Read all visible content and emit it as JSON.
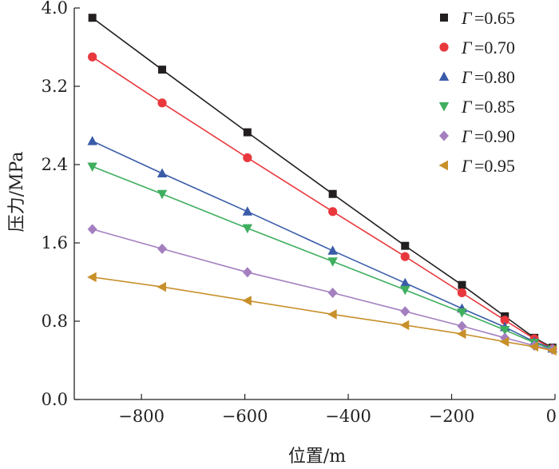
{
  "chart_data": {
    "type": "line",
    "xlabel": "位置/m",
    "ylabel": "压力/MPa",
    "xlim": [
      -930,
      0
    ],
    "ylim": [
      0,
      4.0
    ],
    "x_ticks": [
      -800,
      -600,
      -400,
      -200,
      0
    ],
    "x_tick_labels": [
      "−800",
      "−600",
      "−400",
      "−200",
      "0"
    ],
    "y_ticks": [
      0,
      0.8,
      1.6,
      2.4,
      3.2,
      4.0
    ],
    "y_tick_labels": [
      "0.0",
      "0.8",
      "1.6",
      "2.4",
      "3.2",
      "4.0"
    ],
    "grid": false,
    "legend_position": "top-right",
    "legend_symbol": "Γ",
    "series": [
      {
        "name": "=0.65",
        "marker": "square",
        "color": "#231f20",
        "x": [
          -895,
          -760,
          -595,
          -430,
          -290,
          -180,
          -97,
          -40,
          -5
        ],
        "y": [
          3.9,
          3.37,
          2.73,
          2.1,
          1.57,
          1.17,
          0.85,
          0.63,
          0.53
        ]
      },
      {
        "name": "=0.70",
        "marker": "circle",
        "color": "#e8383d",
        "x": [
          -895,
          -760,
          -595,
          -430,
          -290,
          -180,
          -97,
          -40,
          -5
        ],
        "y": [
          3.5,
          3.03,
          2.47,
          1.92,
          1.46,
          1.09,
          0.81,
          0.62,
          0.52
        ]
      },
      {
        "name": "=0.80",
        "marker": "triangle-up",
        "color": "#3a5ca8",
        "x": [
          -895,
          -760,
          -595,
          -430,
          -290,
          -180,
          -97,
          -40,
          -5
        ],
        "y": [
          2.64,
          2.31,
          1.92,
          1.52,
          1.19,
          0.93,
          0.74,
          0.59,
          0.52
        ]
      },
      {
        "name": "=0.85",
        "marker": "triangle-down",
        "color": "#3fae5f",
        "x": [
          -895,
          -760,
          -595,
          -430,
          -290,
          -180,
          -97,
          -40,
          -5
        ],
        "y": [
          2.38,
          2.1,
          1.75,
          1.41,
          1.12,
          0.89,
          0.71,
          0.58,
          0.51
        ]
      },
      {
        "name": "=0.90",
        "marker": "diamond",
        "color": "#a47fc0",
        "x": [
          -895,
          -760,
          -595,
          -430,
          -290,
          -180,
          -97,
          -40,
          -5
        ],
        "y": [
          1.74,
          1.54,
          1.3,
          1.09,
          0.9,
          0.75,
          0.63,
          0.55,
          0.51
        ]
      },
      {
        "name": "=0.95",
        "marker": "triangle-left",
        "color": "#c8902a",
        "x": [
          -895,
          -760,
          -595,
          -430,
          -290,
          -180,
          -97,
          -40,
          -5
        ],
        "y": [
          1.25,
          1.15,
          1.01,
          0.87,
          0.76,
          0.67,
          0.59,
          0.54,
          0.5
        ]
      }
    ]
  }
}
